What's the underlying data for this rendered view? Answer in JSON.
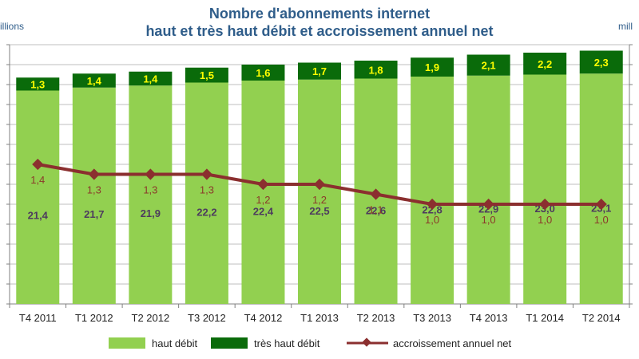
{
  "title_lines": [
    "Nombre d'abonnements internet",
    "haut et très haut débit et accroissement annuel net"
  ],
  "unit_left": "illions",
  "unit_right": "mill",
  "colors": {
    "haut": "#92d050",
    "tres": "#0a6b0a",
    "line": "#8b2f2f",
    "grid": "#bfbfbf"
  },
  "legend": [
    "haut débit",
    "très haut débit",
    "accroissement annuel net"
  ],
  "chart_data": {
    "type": "bar",
    "stacked": true,
    "categories": [
      "T4 2011",
      "T1 2012",
      "T2 2012",
      "T3 2012",
      "T4 2012",
      "T1 2013",
      "T2 2013",
      "T3 2013",
      "T4 2013",
      "T1 2014",
      "T2 2014"
    ],
    "series": [
      {
        "name": "haut débit",
        "values": [
          21.4,
          21.7,
          21.9,
          22.2,
          22.4,
          22.5,
          22.6,
          22.8,
          22.9,
          23.0,
          23.1
        ]
      },
      {
        "name": "très haut débit",
        "values": [
          1.3,
          1.4,
          1.4,
          1.5,
          1.6,
          1.7,
          1.8,
          1.9,
          2.1,
          2.2,
          2.3
        ]
      }
    ],
    "line_series": {
      "name": "accroissement annuel net",
      "values": [
        1.4,
        1.3,
        1.3,
        1.3,
        1.2,
        1.2,
        1.1,
        1.0,
        1.0,
        1.0,
        1.0
      ]
    },
    "labels": {
      "haut": [
        "21,4",
        "21,7",
        "21,9",
        "22,2",
        "22,4",
        "22,5",
        "22,6",
        "22,8",
        "22,9",
        "23,0",
        "23,1"
      ],
      "tres": [
        "1,3",
        "1,4",
        "1,4",
        "1,5",
        "1,6",
        "1,7",
        "1,8",
        "1,9",
        "2,1",
        "2,2",
        "2,3"
      ],
      "line": [
        "1,4",
        "1,3",
        "1,3",
        "1,3",
        "1,2",
        "1,2",
        "1,1",
        "1,0",
        "1,0",
        "1,0",
        "1,0"
      ]
    },
    "ylim": [
      0,
      26
    ],
    "y2lim": [
      0,
      2.6
    ],
    "legend_position": "bottom"
  }
}
